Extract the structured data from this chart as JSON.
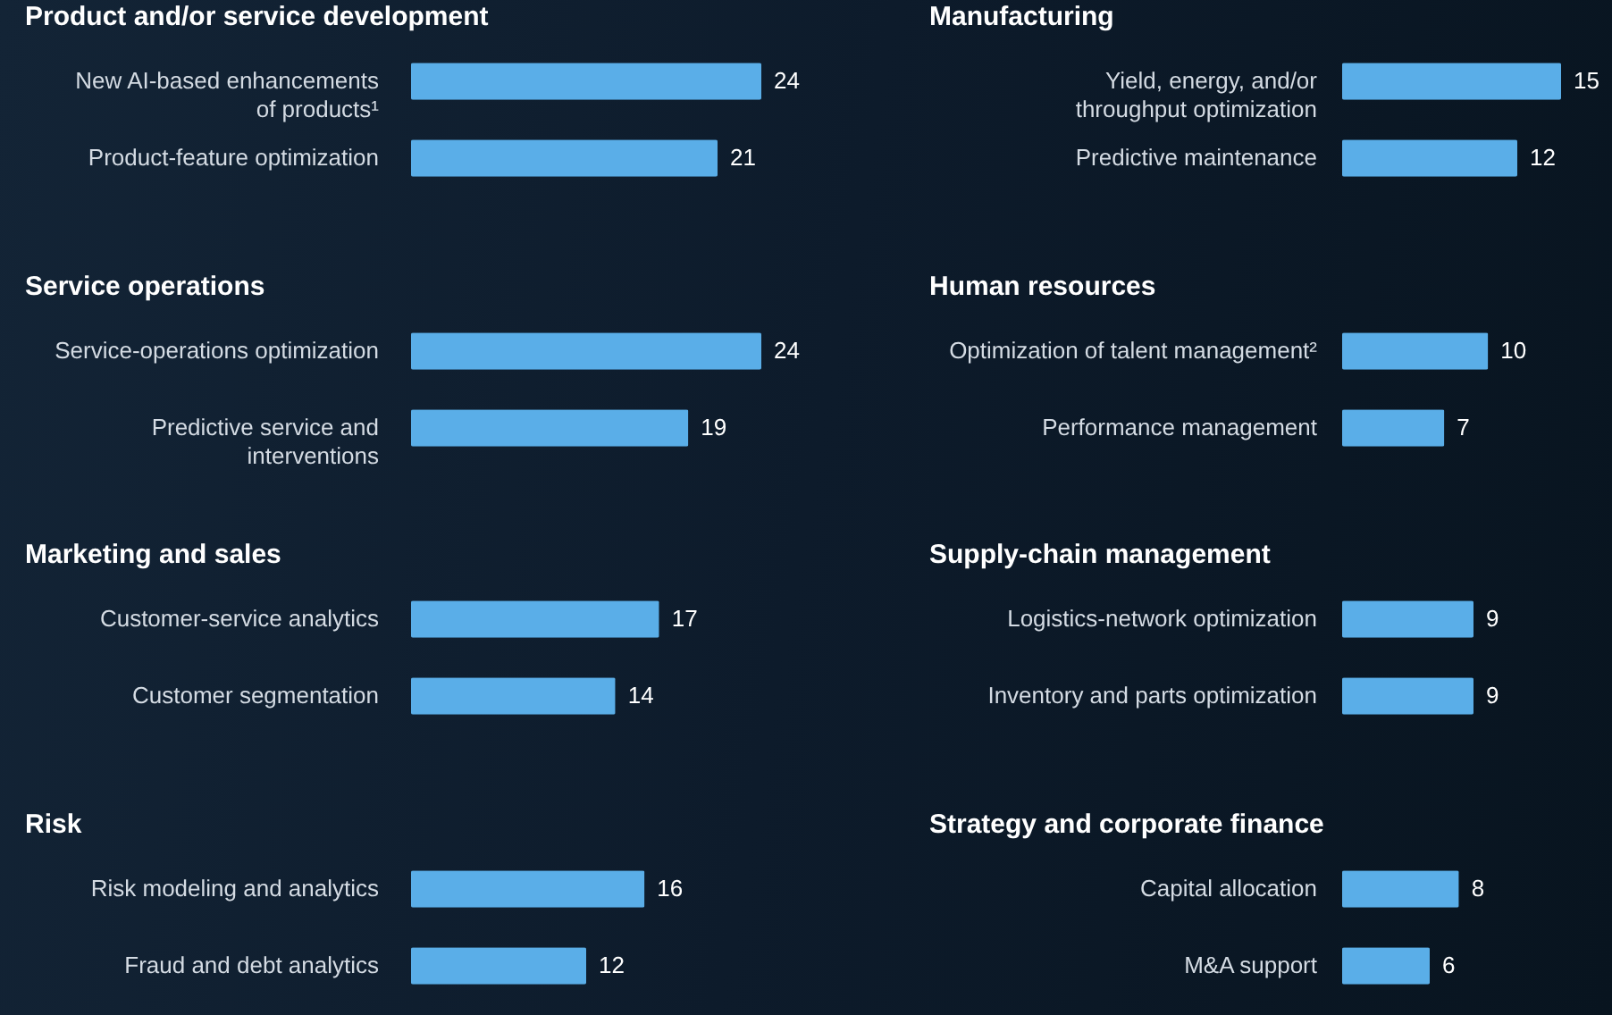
{
  "chart_data": [
    {
      "type": "bar",
      "orientation": "horizontal",
      "title": "Product and/or service development",
      "categories": [
        "New AI-based enhancements\nof products¹",
        "Product-feature optimization"
      ],
      "values": [
        24,
        21
      ],
      "color": "#5aaee8",
      "data_labels": true
    },
    {
      "type": "bar",
      "orientation": "horizontal",
      "title": "Manufacturing",
      "categories": [
        "Yield, energy, and/or\nthroughput optimization",
        "Predictive maintenance"
      ],
      "values": [
        15,
        12
      ],
      "color": "#5aaee8",
      "data_labels": true
    },
    {
      "type": "bar",
      "orientation": "horizontal",
      "title": "Service operations",
      "categories": [
        "Service-operations optimization",
        "Predictive service and\ninterventions"
      ],
      "values": [
        24,
        19
      ],
      "color": "#5aaee8",
      "data_labels": true
    },
    {
      "type": "bar",
      "orientation": "horizontal",
      "title": "Human resources",
      "categories": [
        "Optimization of talent management²",
        "Performance management"
      ],
      "values": [
        10,
        7
      ],
      "color": "#5aaee8",
      "data_labels": true
    },
    {
      "type": "bar",
      "orientation": "horizontal",
      "title": "Marketing and sales",
      "categories": [
        "Customer-service analytics",
        "Customer segmentation"
      ],
      "values": [
        17,
        14
      ],
      "color": "#5aaee8",
      "data_labels": true
    },
    {
      "type": "bar",
      "orientation": "horizontal",
      "title": "Supply-chain management",
      "categories": [
        "Logistics-network optimization",
        "Inventory and parts optimization"
      ],
      "values": [
        9,
        9
      ],
      "color": "#5aaee8",
      "data_labels": true
    },
    {
      "type": "bar",
      "orientation": "horizontal",
      "title": "Risk",
      "categories": [
        "Risk modeling and analytics",
        "Fraud and debt analytics"
      ],
      "values": [
        16,
        12
      ],
      "color": "#5aaee8",
      "data_labels": true
    },
    {
      "type": "bar",
      "orientation": "horizontal",
      "title": "Strategy and corporate finance",
      "categories": [
        "Capital allocation",
        "M&A support"
      ],
      "values": [
        8,
        6
      ],
      "color": "#5aaee8",
      "data_labels": true
    }
  ]
}
